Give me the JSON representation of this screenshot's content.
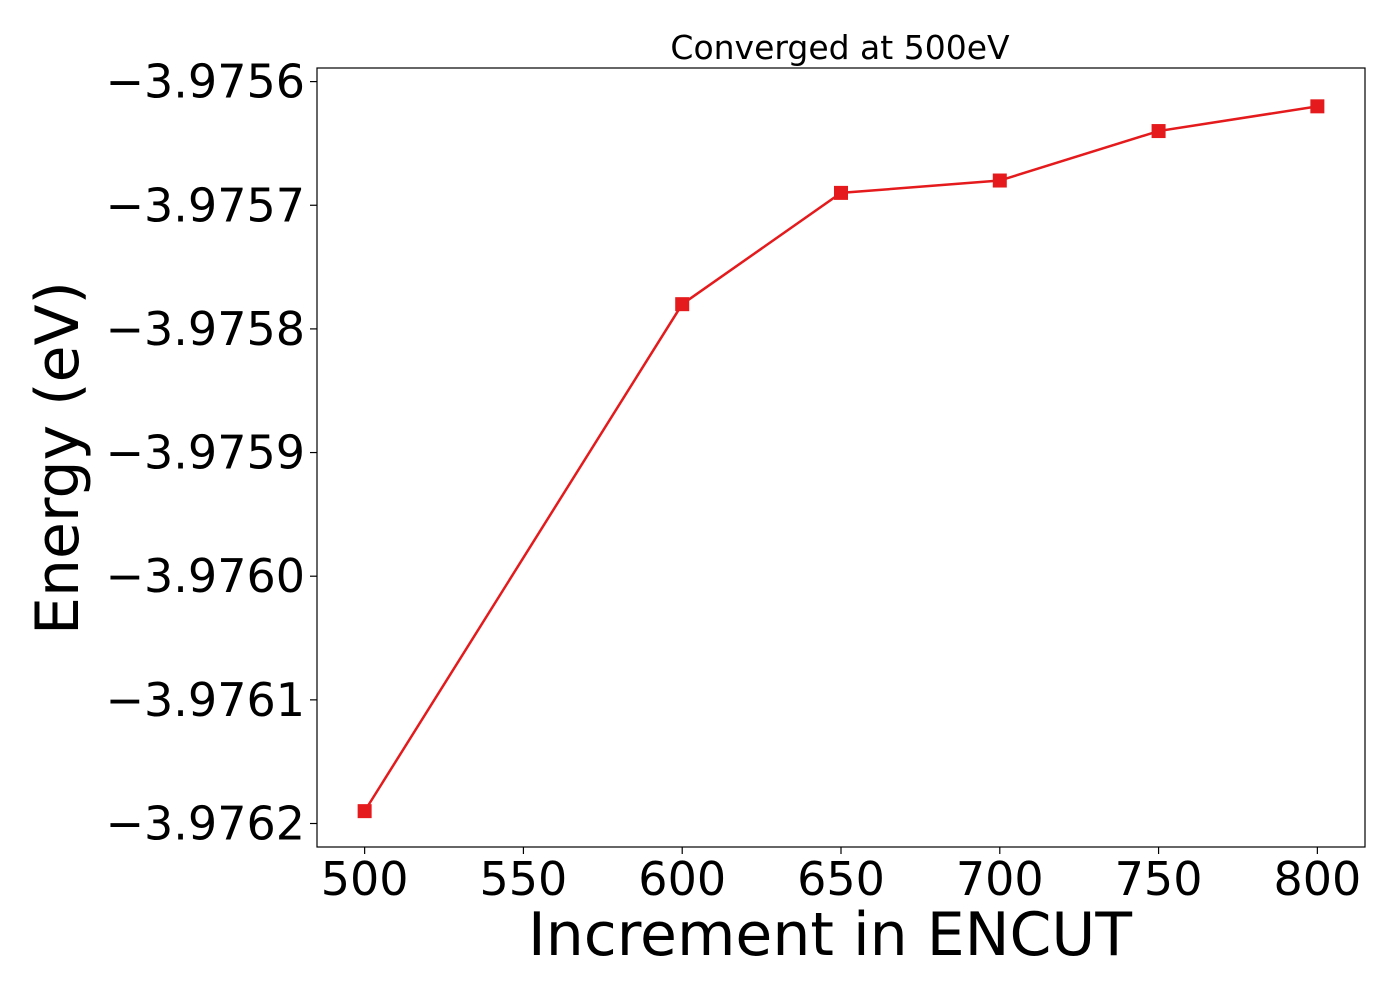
{
  "chart_data": {
    "type": "line",
    "title": "Converged at 500eV",
    "xlabel": "Increment in ENCUT",
    "ylabel": "Energy (eV)",
    "x": [
      500,
      600,
      650,
      700,
      750,
      800
    ],
    "series": [
      {
        "values": [
          -3.97619,
          -3.97578,
          -3.97569,
          -3.97568,
          -3.97564,
          -3.97562
        ],
        "color": "#e41a1c",
        "marker": "square"
      }
    ],
    "xticks": [
      500,
      550,
      600,
      650,
      700,
      750,
      800
    ],
    "xtick_labels": [
      "500",
      "550",
      "600",
      "650",
      "700",
      "750",
      "800"
    ],
    "yticks": [
      -3.9762,
      -3.9761,
      -3.976,
      -3.9759,
      -3.9758,
      -3.9757,
      -3.9756
    ],
    "ytick_labels": [
      "−3.9762",
      "−3.9761",
      "−3.9760",
      "−3.9759",
      "−3.9758",
      "−3.9757",
      "−3.9756"
    ],
    "xlim": [
      485,
      815
    ],
    "ylim": [
      -3.976219,
      -3.975589
    ],
    "grid": false,
    "legend": "none"
  }
}
